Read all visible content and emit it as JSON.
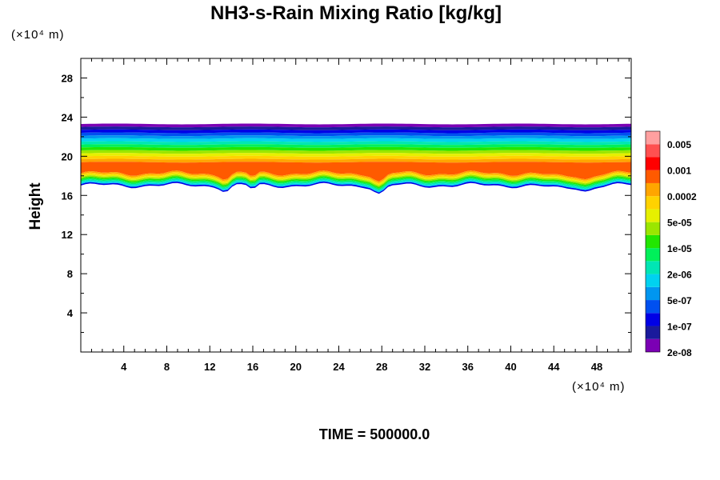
{
  "chart_data": {
    "type": "heatmap",
    "title": "NH3-s-Rain Mixing Ratio [kg/kg]",
    "ylabel": "Height",
    "xlabel": "",
    "x_unit": "(×10⁴ m)",
    "y_unit": "(×10⁴ m)",
    "x_ticks": [
      4,
      8,
      12,
      16,
      20,
      24,
      28,
      32,
      36,
      40,
      44,
      48
    ],
    "y_ticks": [
      4,
      8,
      12,
      16,
      20,
      24,
      28
    ],
    "xlim": [
      0,
      51.2
    ],
    "ylim": [
      0,
      30
    ],
    "footer": "TIME = 500000.0",
    "legend": {
      "labels": [
        "0.005",
        "0.001",
        "0.0002",
        "5e-05",
        "1e-05",
        "2e-06",
        "5e-07",
        "1e-07",
        "2e-08"
      ],
      "colors": [
        "#7b00b4",
        "#1a1a9c",
        "#0000e6",
        "#0050f0",
        "#0096f0",
        "#00d2f0",
        "#00e6b4",
        "#00f05a",
        "#22e600",
        "#9be600",
        "#e6f000",
        "#ffd200",
        "#ffa500",
        "#ff5a00",
        "#ff0000",
        "#ff5050",
        "#ffa0a0"
      ]
    },
    "field": {
      "top_height": 23.3,
      "bottom_height_approx": 17.0,
      "dip_locations_x": [
        13.5,
        16.0,
        27.8,
        47.0
      ],
      "deepest_dip_height": 16.3
    }
  }
}
